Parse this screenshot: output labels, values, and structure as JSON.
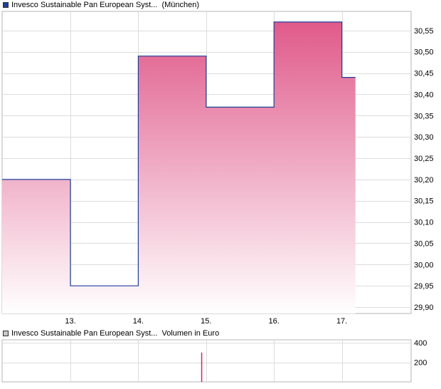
{
  "legends": {
    "price": {
      "label": "Invesco Sustainable Pan European Syst...",
      "suffix": "(München)",
      "color": "#1f3f9c"
    },
    "volume": {
      "label": "Invesco Sustainable Pan European Syst...",
      "suffix": "Volumen in Euro",
      "color": "#c8c8c8"
    }
  },
  "chart_data": [
    {
      "type": "area",
      "subtype": "step",
      "series": [
        {
          "name": "Invesco Sustainable Pan European Syst... (München)",
          "x": [
            12.03,
            13.0,
            14.0,
            15.0,
            16.0,
            17.0,
            17.2
          ],
          "values": [
            30.2,
            29.95,
            30.49,
            30.37,
            30.57,
            30.44,
            30.44
          ]
        }
      ],
      "x_ticks": [
        "13.",
        "14.",
        "15.",
        "16.",
        "17."
      ],
      "y_ticks": [
        "29,90",
        "29,95",
        "30,00",
        "30,05",
        "30,10",
        "30,15",
        "30,20",
        "30,25",
        "30,30",
        "30,35",
        "30,40",
        "30,45",
        "30,50",
        "30,55"
      ],
      "ylim": [
        29.885,
        30.595
      ],
      "grid": true,
      "colors": {
        "line": "#1f3f9c",
        "fill_top": "#e05a8a",
        "fill_bottom": "#ffffff"
      }
    },
    {
      "type": "bar",
      "series": [
        {
          "name": "Invesco Sustainable Pan European Syst... Volumen in Euro",
          "x": [
            15.0
          ],
          "values": [
            300
          ]
        }
      ],
      "y_ticks": [
        "200",
        "400"
      ],
      "ylim": [
        0,
        430
      ],
      "grid": true,
      "colors": {
        "bar": "#e0205a"
      }
    }
  ]
}
